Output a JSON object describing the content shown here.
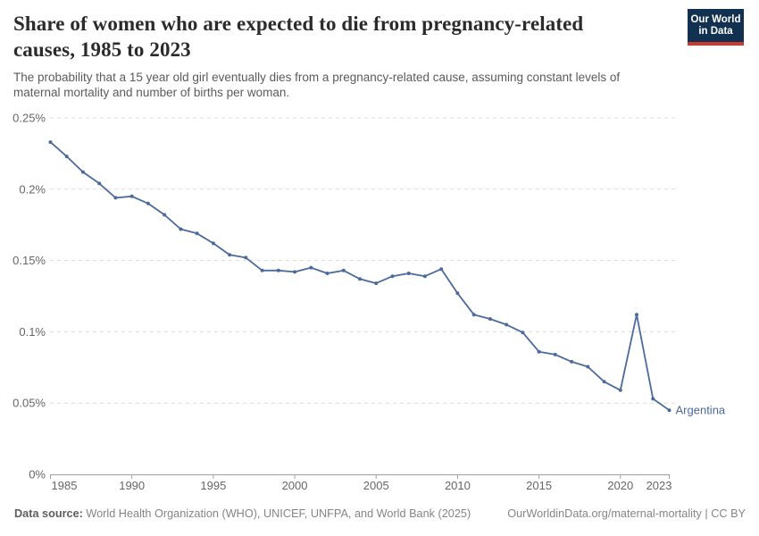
{
  "logo": {
    "line1": "Our World",
    "line2": "in Data"
  },
  "header": {
    "title_lines": [
      "Share of women who are expected to die from pregnancy-related",
      "causes, 1985 to 2023"
    ],
    "subtitle_lines": [
      "The probability that a 15 year old girl eventually dies from a pregnancy-related cause, assuming constant levels of",
      "maternal mortality and number of births per woman."
    ]
  },
  "footer": {
    "datasource_label": "Data source:",
    "datasource_text": " World Health Organization (WHO), UNICEF, UNFPA, and World Bank (2025)",
    "link_text": "OurWorldinData.org/maternal-mortality | CC BY"
  },
  "colors": {
    "line": "#4c6a9c",
    "grid": "#dcdcdc",
    "axis": "#a0a0a0",
    "tick_label": "#666666",
    "logo_bg": "#12304f",
    "logo_red": "#cc392e"
  },
  "chart_data": {
    "type": "line",
    "title": "Share of women who are expected to die from pregnancy-related causes, 1985 to 2023",
    "subtitle": "The probability that a 15 year old girl eventually dies from a pregnancy-related cause, assuming constant levels of maternal mortality and number of births per woman.",
    "xlabel": "",
    "ylabel": "",
    "xlim": [
      1985,
      2023
    ],
    "ylim": [
      0,
      0.25
    ],
    "grid": "horizontal-dashed",
    "legend_position": "end-of-line-label",
    "x_ticks": [
      1985,
      1990,
      1995,
      2000,
      2005,
      2010,
      2015,
      2020,
      2023
    ],
    "y_ticks": [
      {
        "value": 0,
        "label": "0%"
      },
      {
        "value": 0.05,
        "label": "0.05%"
      },
      {
        "value": 0.1,
        "label": "0.1%"
      },
      {
        "value": 0.15,
        "label": "0.15%"
      },
      {
        "value": 0.2,
        "label": "0.2%"
      },
      {
        "value": 0.25,
        "label": "0.25%"
      }
    ],
    "series": [
      {
        "name": "Argentina",
        "unit": "%",
        "x": [
          1985,
          1986,
          1987,
          1988,
          1989,
          1990,
          1991,
          1992,
          1993,
          1994,
          1995,
          1996,
          1997,
          1998,
          1999,
          2000,
          2001,
          2002,
          2003,
          2004,
          2005,
          2006,
          2007,
          2008,
          2009,
          2010,
          2011,
          2012,
          2013,
          2014,
          2015,
          2016,
          2017,
          2018,
          2019,
          2020,
          2021,
          2022,
          2023
        ],
        "values": [
          0.233,
          0.223,
          0.212,
          0.204,
          0.194,
          0.195,
          0.19,
          0.182,
          0.172,
          0.169,
          0.162,
          0.154,
          0.152,
          0.143,
          0.143,
          0.142,
          0.145,
          0.141,
          0.143,
          0.137,
          0.134,
          0.139,
          0.141,
          0.139,
          0.144,
          0.127,
          0.112,
          0.109,
          0.105,
          0.0995,
          0.086,
          0.084,
          0.079,
          0.0755,
          0.065,
          0.059,
          0.112,
          0.053,
          0.045
        ]
      }
    ]
  }
}
